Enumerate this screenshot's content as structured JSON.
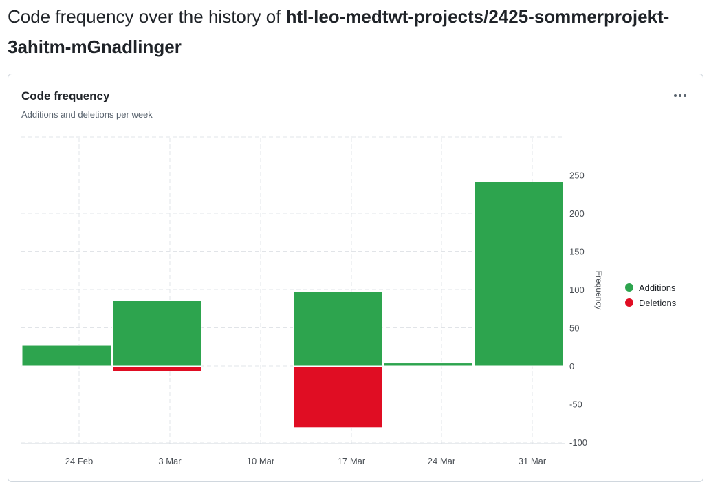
{
  "page": {
    "title_prefix": "Code frequency over the history of ",
    "repo_name": "htl-leo-medtwt-projects/2425-sommerprojekt-3ahitm-mGnadlinger"
  },
  "card": {
    "title": "Code frequency",
    "subtitle": "Additions and deletions per week",
    "more_icon": "kebab-horizontal-icon"
  },
  "colors": {
    "additions": "#2da44e",
    "deletions": "#e00d23",
    "grid": "#e1e4e8",
    "axis": "#d0d7de",
    "tick_text": "#4a4f55"
  },
  "chart_data": {
    "type": "bar",
    "x": [
      "2025-02-17",
      "2025-02-24",
      "2025-03-03",
      "2025-03-10",
      "2025-03-17",
      "2025-03-24"
    ],
    "x_ticks": [
      "24 Feb",
      "3 Mar",
      "10 Mar",
      "17 Mar",
      "24 Mar",
      "31 Mar"
    ],
    "series": [
      {
        "name": "Additions",
        "values": [
          27,
          86,
          0,
          97,
          4,
          241
        ]
      },
      {
        "name": "Deletions",
        "values": [
          0,
          -6,
          0,
          -80,
          0,
          0
        ]
      }
    ],
    "xlabel": "",
    "ylabel": "Frequency",
    "ylim": [
      -100,
      250
    ],
    "y_ticks": [
      250,
      200,
      150,
      100,
      50,
      0,
      -50,
      -100
    ],
    "grid": true,
    "legend": "right"
  }
}
